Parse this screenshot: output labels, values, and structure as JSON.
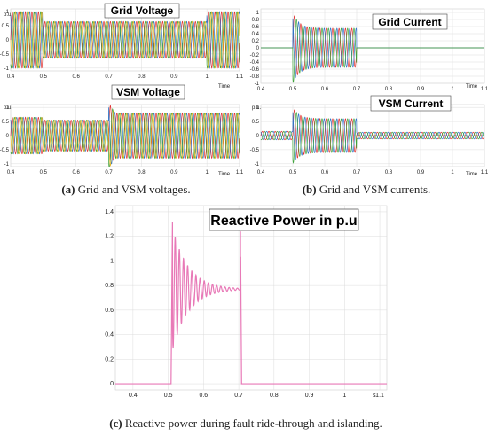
{
  "colors": {
    "phase_a": "#e0312f",
    "phase_b": "#2f74c8",
    "phase_c": "#3ea33a",
    "phase_d": "#e3b51f",
    "reactive": "#e879b7",
    "grid": "#dcdcdc"
  },
  "panels": {
    "a_top": {
      "title": "Grid Voltage",
      "ylabel": "p.u.",
      "xlabel": "Time"
    },
    "a_bottom": {
      "title": "VSM Voltage",
      "ylabel": "p.u.",
      "xlabel": "Time"
    },
    "b_top": {
      "title": "Grid Current",
      "ylabel": "p.u.",
      "xlabel": "Time"
    },
    "b_bottom": {
      "title": "VSM Current",
      "ylabel": "p.u.",
      "xlabel": "Time"
    },
    "c": {
      "title": "Reactive Power in p.u",
      "xlabel": "s"
    }
  },
  "captions": {
    "a_label": "(a)",
    "a_text": " Grid and VSM voltages.",
    "b_label": "(b)",
    "b_text": " Grid and VSM currents.",
    "c_label": "(c)",
    "c_text": " Reactive power during fault ride-through and islanding."
  },
  "chart_data": [
    {
      "type": "line",
      "title": "Grid Voltage",
      "ylabel": "p.u.",
      "xlabel": "Time",
      "xlim": [
        0.4,
        1.1
      ],
      "ylim": [
        -1.1,
        1.1
      ],
      "x_ticks": [
        "0.4",
        "0.5",
        "0.6",
        "0.7",
        "0.8",
        "0.9",
        "1",
        "1.1"
      ],
      "y_ticks": [
        "1",
        "0.5",
        "0",
        "-0.5",
        "-1"
      ],
      "series": [
        {
          "segments": [
            [
              0.4,
              0.5,
              1.0
            ],
            [
              0.5,
              1.0,
              0.65
            ],
            [
              1.0,
              1.1,
              1.0
            ]
          ]
        }
      ]
    },
    {
      "type": "line",
      "title": "VSM Voltage",
      "ylabel": "p.u.",
      "xlabel": "Time",
      "xlim": [
        0.4,
        1.1
      ],
      "ylim": [
        -1.1,
        1.1
      ],
      "x_ticks": [
        "0.4",
        "0.5",
        "0.6",
        "0.7",
        "0.8",
        "0.9",
        "1",
        "1.1"
      ],
      "y_ticks": [
        "1",
        "0.5",
        "0",
        "-0.5",
        "-1"
      ],
      "series": [
        {
          "segments": [
            [
              0.4,
              0.5,
              0.65
            ],
            [
              0.5,
              0.7,
              0.55
            ],
            [
              0.7,
              1.1,
              0.8
            ]
          ]
        }
      ]
    },
    {
      "type": "line",
      "title": "Grid Current",
      "xlabel": "s",
      "xlim": [
        0.4,
        1.1
      ],
      "ylim": [
        -1.0,
        1.1
      ],
      "x_ticks": [
        "0.4",
        "0.5",
        "0.6",
        "0.7",
        "0.8",
        "0.9",
        "1",
        "1.1"
      ],
      "y_ticks": [
        "1",
        "0.8",
        "0.6",
        "0.4",
        "0.2",
        "0",
        "-0.2",
        "-0.4",
        "-0.6",
        "-0.8",
        "-1"
      ],
      "series": [
        {
          "fault_start": 0.5,
          "fault_end": 0.7,
          "peak": 1.0,
          "steady": 0.55
        }
      ]
    },
    {
      "type": "line",
      "title": "VSM Current",
      "ylabel": "p.u.",
      "xlabel": "s",
      "xlim": [
        0.4,
        1.1
      ],
      "ylim": [
        -1.1,
        1.1
      ],
      "x_ticks": [
        "0.4",
        "0.5",
        "0.6",
        "0.7",
        "0.8",
        "0.9",
        "1",
        "1.1"
      ],
      "y_ticks": [
        "1",
        "0.5",
        "0",
        "-0.5",
        "-1"
      ],
      "series": [
        {
          "fault_start": 0.5,
          "fault_end": 0.7,
          "peak": 1.0,
          "steady": 0.6,
          "pre": 0.15,
          "post": 0.12
        }
      ]
    },
    {
      "type": "line",
      "title": "Reactive Power in p.u",
      "xlabel": "s",
      "xlim": [
        0.35,
        1.12
      ],
      "ylim": [
        -0.05,
        1.45
      ],
      "x_ticks": [
        "0.4",
        "0.5",
        "0.6",
        "0.7",
        "0.8",
        "0.9",
        "1",
        "1.1"
      ],
      "y_ticks": [
        "1.4",
        "1.2",
        "1",
        "0.8",
        "0.6",
        "0.4",
        "0.2",
        "0"
      ],
      "series": [
        {
          "name": "",
          "fault_start": 0.508,
          "fault_end": 0.705,
          "peak": 1.32,
          "steady": 0.77,
          "spike": 1.24
        }
      ]
    }
  ]
}
